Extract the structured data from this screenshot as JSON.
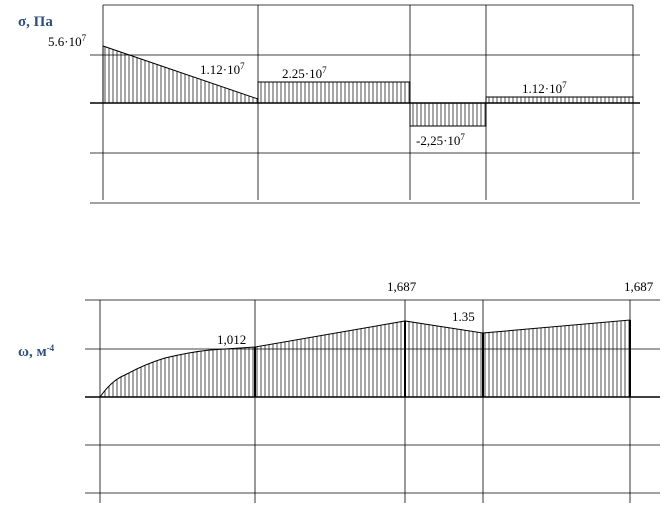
{
  "top": {
    "axis_label": "σ, Па",
    "labels": [
      {
        "base": "5.6·10",
        "exp": "7"
      },
      {
        "base": "1.12·10",
        "exp": "7"
      },
      {
        "base": "2.25·10",
        "exp": "7"
      },
      {
        "base": "-2,25·10",
        "exp": "7"
      },
      {
        "base": "1.12·10",
        "exp": "7"
      }
    ]
  },
  "bottom": {
    "axis_label": {
      "base": "ω, м",
      "exp": "-4"
    },
    "labels": [
      "1,012",
      "1,687",
      "1.35",
      "1,687"
    ]
  }
}
